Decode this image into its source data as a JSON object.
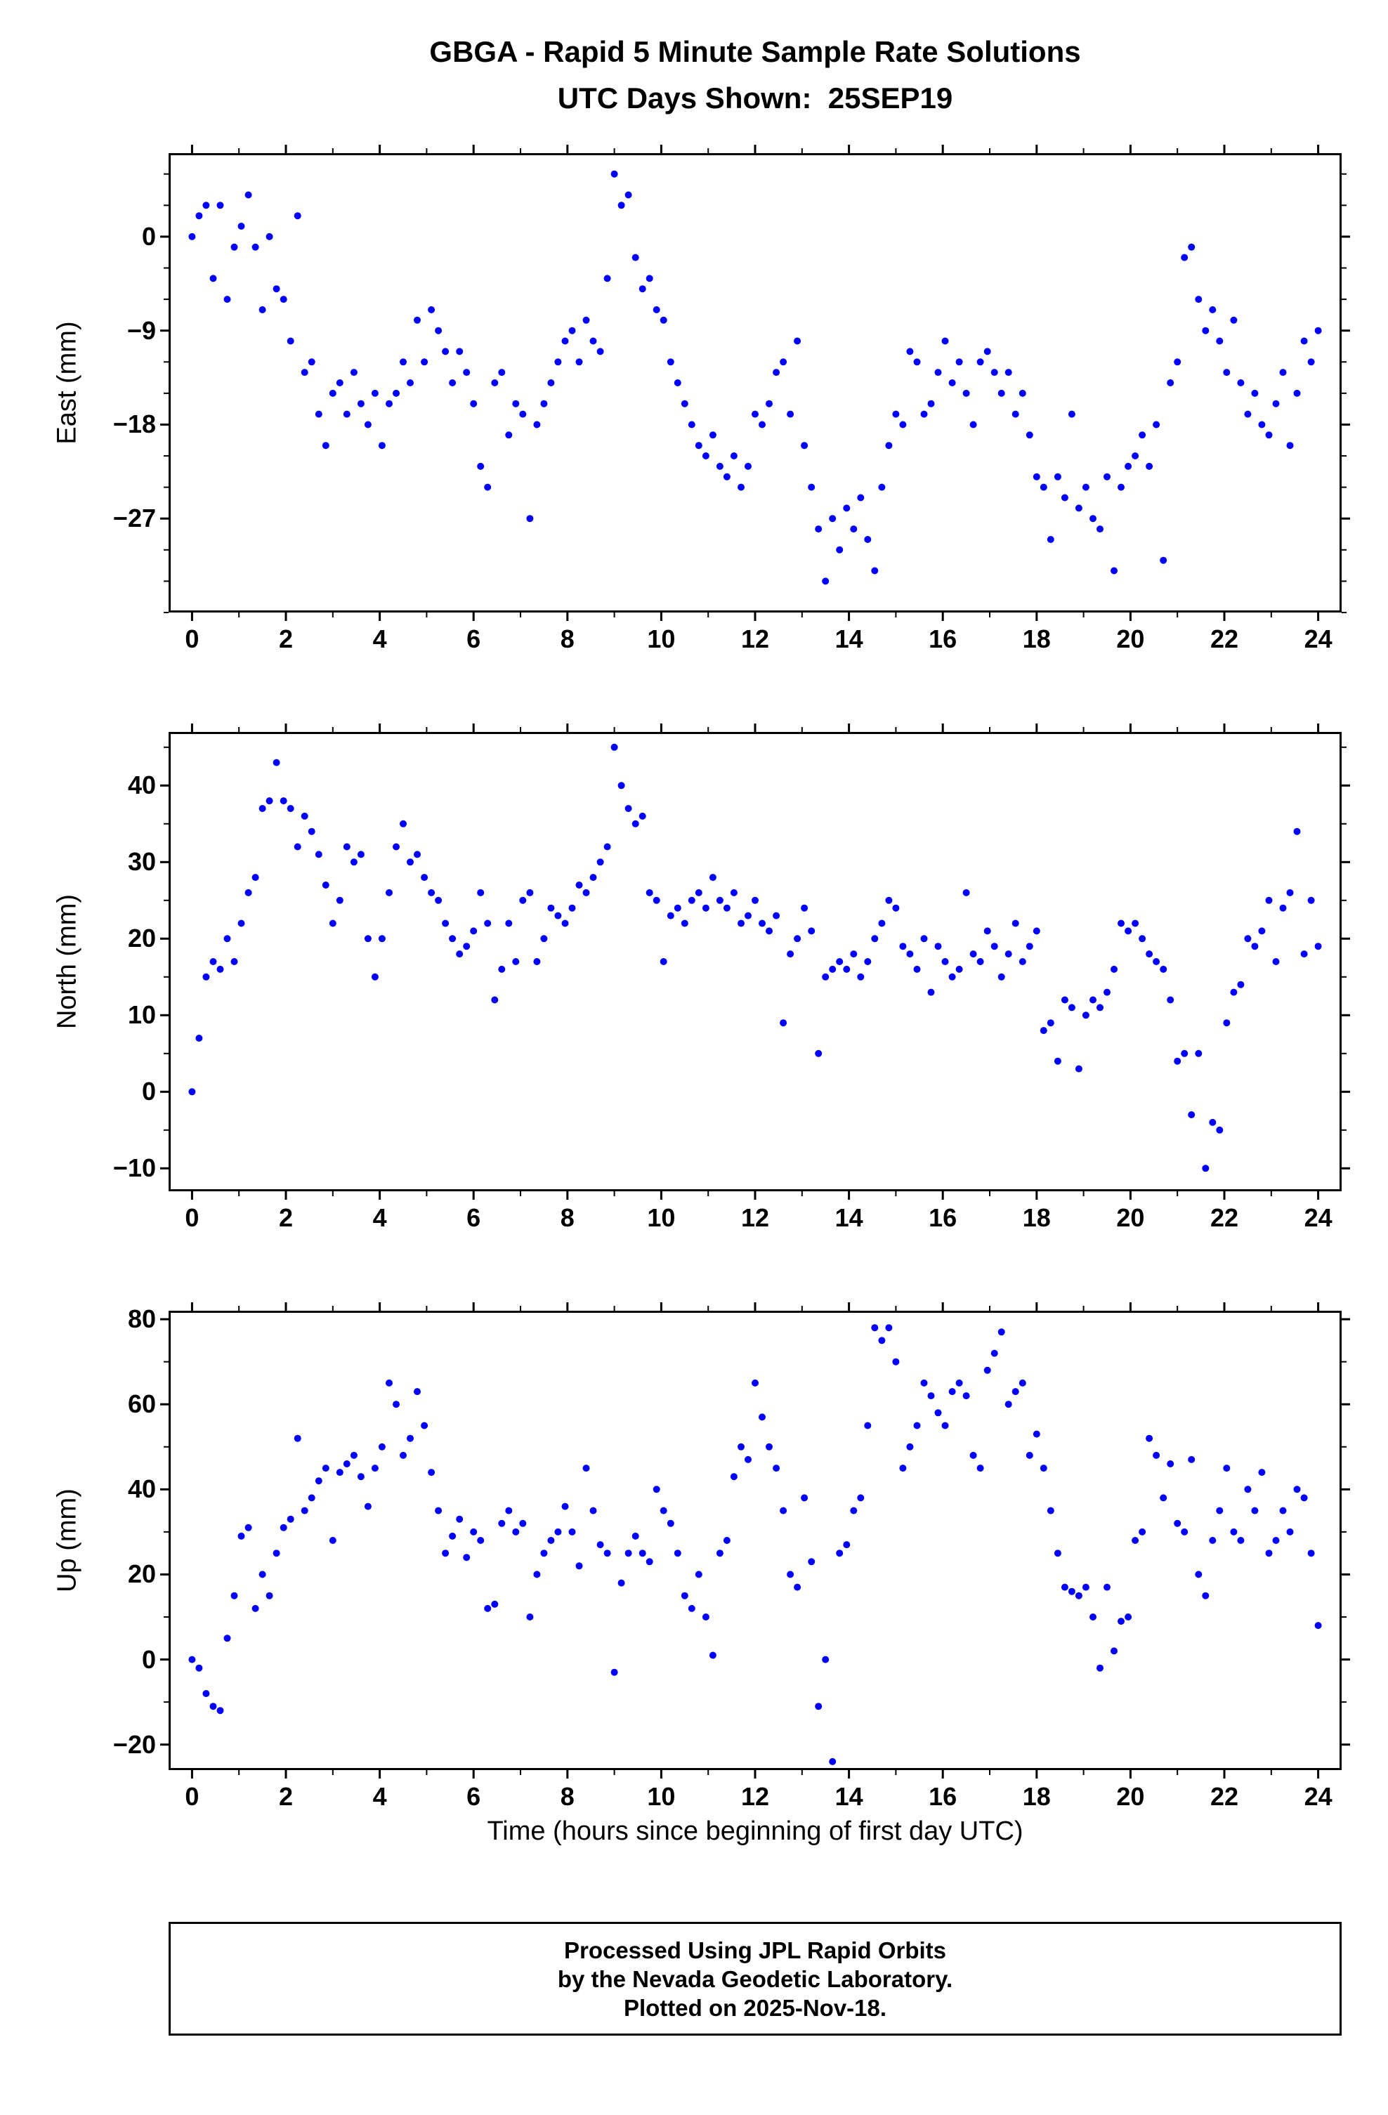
{
  "title_line1": "GBGA - Rapid 5 Minute Sample Rate Solutions",
  "title_line2": "UTC Days Shown:  25SEP19",
  "xlabel": "Time (hours since beginning of first day UTC)",
  "footer": {
    "line1": "Processed Using JPL Rapid Orbits",
    "line2": "by the Nevada Geodetic Laboratory.",
    "line3": "Plotted on 2025-Nov-18."
  },
  "colors": {
    "point": "#0000ff",
    "axis": "#000000",
    "background": "#ffffff"
  },
  "chart_data": [
    {
      "type": "scatter",
      "name": "east",
      "title": "",
      "ylabel": "East (mm)",
      "xlabel": "",
      "xlim": [
        -0.5,
        24.5
      ],
      "ylim": [
        -36,
        8
      ],
      "xticks": [
        0,
        2,
        4,
        6,
        8,
        10,
        12,
        14,
        16,
        18,
        20,
        22,
        24
      ],
      "xtick_minor": 1,
      "yticks": [
        0,
        -9,
        -18,
        -27
      ],
      "ytick_minor": 3,
      "grid": false,
      "legend": false,
      "x_start": 0,
      "x_step": 0.15,
      "values": [
        0,
        2,
        3,
        -4,
        3,
        -6,
        -1,
        1,
        4,
        -1,
        -7,
        0,
        -5,
        -6,
        -10,
        2,
        -13,
        -12,
        -17,
        -20,
        -15,
        -14,
        -17,
        -13,
        -16,
        -18,
        -15,
        -20,
        -16,
        -15,
        -12,
        -14,
        -8,
        -12,
        -7,
        -9,
        -11,
        -14,
        -11,
        -13,
        -16,
        -22,
        -24,
        -14,
        -13,
        -19,
        -16,
        -17,
        -27,
        -18,
        -16,
        -14,
        -12,
        -10,
        -9,
        -12,
        -8,
        -10,
        -11,
        -4,
        6,
        3,
        4,
        -2,
        -5,
        -4,
        -7,
        -8,
        -12,
        -14,
        -16,
        -18,
        -20,
        -21,
        -19,
        -22,
        -23,
        -21,
        -24,
        -22,
        -17,
        -18,
        -16,
        -13,
        -12,
        -17,
        -10,
        -20,
        -24,
        -28,
        -33,
        -27,
        -30,
        -26,
        -28,
        -25,
        -29,
        -32,
        -24,
        -20,
        -17,
        -18,
        -11,
        -12,
        -17,
        -16,
        -13,
        -10,
        -14,
        -12,
        -15,
        -18,
        -12,
        -11,
        -13,
        -15,
        -13,
        -17,
        -15,
        -19,
        -23,
        -24,
        -29,
        -23,
        -25,
        -17,
        -26,
        -24,
        -27,
        -28,
        -23,
        -32,
        -24,
        -22,
        -21,
        -19,
        -22,
        -18,
        -31,
        -14,
        -12,
        -2,
        -1,
        -6,
        -9,
        -7,
        -10,
        -13,
        -8,
        -14,
        -17,
        -15,
        -18,
        -19,
        -16,
        -13,
        -20,
        -15,
        -10,
        -12,
        -9
      ]
    },
    {
      "type": "scatter",
      "name": "north",
      "title": "",
      "ylabel": "North (mm)",
      "xlabel": "",
      "xlim": [
        -0.5,
        24.5
      ],
      "ylim": [
        -13,
        47
      ],
      "xticks": [
        0,
        2,
        4,
        6,
        8,
        10,
        12,
        14,
        16,
        18,
        20,
        22,
        24
      ],
      "xtick_minor": 1,
      "yticks": [
        40,
        30,
        20,
        10,
        0,
        -10
      ],
      "ytick_minor": 5,
      "grid": false,
      "legend": false,
      "x_start": 0,
      "x_step": 0.15,
      "values": [
        0,
        7,
        15,
        17,
        16,
        20,
        17,
        22,
        26,
        28,
        37,
        38,
        43,
        38,
        37,
        32,
        36,
        34,
        31,
        27,
        22,
        25,
        32,
        30,
        31,
        20,
        15,
        20,
        26,
        32,
        35,
        30,
        31,
        28,
        26,
        25,
        22,
        20,
        18,
        19,
        21,
        26,
        22,
        12,
        16,
        22,
        17,
        25,
        26,
        17,
        20,
        24,
        23,
        22,
        24,
        27,
        26,
        28,
        30,
        32,
        45,
        40,
        37,
        35,
        36,
        26,
        25,
        17,
        23,
        24,
        22,
        25,
        26,
        24,
        28,
        25,
        24,
        26,
        22,
        23,
        25,
        22,
        21,
        23,
        9,
        18,
        20,
        24,
        21,
        5,
        15,
        16,
        17,
        16,
        18,
        15,
        17,
        20,
        22,
        25,
        24,
        19,
        18,
        16,
        20,
        13,
        19,
        17,
        15,
        16,
        26,
        18,
        17,
        21,
        19,
        15,
        18,
        22,
        17,
        19,
        21,
        8,
        9,
        4,
        12,
        11,
        3,
        10,
        12,
        11,
        13,
        16,
        22,
        21,
        22,
        20,
        18,
        17,
        16,
        12,
        4,
        5,
        -3,
        5,
        -10,
        -4,
        -5,
        9,
        13,
        14,
        20,
        19,
        21,
        25,
        17,
        24,
        26,
        34,
        18,
        25,
        19
      ]
    },
    {
      "type": "scatter",
      "name": "up",
      "title": "",
      "ylabel": "Up (mm)",
      "xlabel": "Time (hours since beginning of first day UTC)",
      "xlim": [
        -0.5,
        24.5
      ],
      "ylim": [
        -26,
        82
      ],
      "xticks": [
        0,
        2,
        4,
        6,
        8,
        10,
        12,
        14,
        16,
        18,
        20,
        22,
        24
      ],
      "xtick_minor": 1,
      "yticks": [
        80,
        60,
        40,
        20,
        0,
        -20
      ],
      "ytick_minor": 10,
      "grid": false,
      "legend": false,
      "x_start": 0,
      "x_step": 0.15,
      "values": [
        0,
        -2,
        -8,
        -11,
        -12,
        5,
        15,
        29,
        31,
        12,
        20,
        15,
        25,
        31,
        33,
        52,
        35,
        38,
        42,
        45,
        28,
        44,
        46,
        48,
        43,
        36,
        45,
        50,
        65,
        60,
        48,
        52,
        63,
        55,
        44,
        35,
        25,
        29,
        33,
        24,
        30,
        28,
        12,
        13,
        32,
        35,
        30,
        32,
        10,
        20,
        25,
        28,
        30,
        36,
        30,
        22,
        45,
        35,
        27,
        25,
        -3,
        18,
        25,
        29,
        25,
        23,
        40,
        35,
        32,
        25,
        15,
        12,
        20,
        10,
        1,
        25,
        28,
        43,
        50,
        47,
        65,
        57,
        50,
        45,
        35,
        20,
        17,
        38,
        23,
        -11,
        0,
        -24,
        25,
        27,
        35,
        38,
        55,
        78,
        75,
        78,
        70,
        45,
        50,
        55,
        65,
        62,
        58,
        55,
        63,
        65,
        62,
        48,
        45,
        68,
        72,
        77,
        60,
        63,
        65,
        48,
        53,
        45,
        35,
        25,
        17,
        16,
        15,
        17,
        10,
        -2,
        17,
        2,
        9,
        10,
        28,
        30,
        52,
        48,
        38,
        46,
        32,
        30,
        47,
        20,
        15,
        28,
        35,
        45,
        30,
        28,
        40,
        35,
        44,
        25,
        28,
        35,
        30,
        40,
        38,
        25,
        8
      ]
    }
  ]
}
